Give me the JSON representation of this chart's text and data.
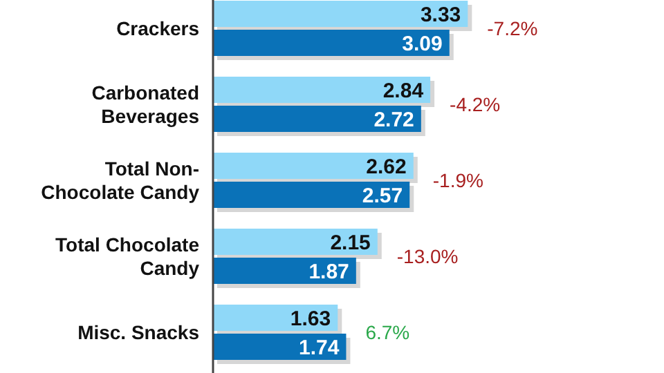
{
  "chart_data": {
    "type": "bar",
    "orientation": "horizontal",
    "data_labels": true,
    "categories": [
      "Crackers",
      "Carbonated Beverages",
      "Total Non-Chocolate Candy",
      "Total Chocolate Candy",
      "Misc. Snacks"
    ],
    "series": [
      {
        "color": "#8fd8f8",
        "values": [
          3.33,
          2.84,
          2.62,
          2.15,
          1.63
        ]
      },
      {
        "color": "#0a72b8",
        "values": [
          3.09,
          2.72,
          2.57,
          1.87,
          1.74
        ]
      }
    ],
    "annotations": [
      {
        "text": "-7.2%",
        "x": 3.33,
        "y": "Crackers"
      },
      {
        "text": "-4.2%",
        "x": 2.84,
        "y": "Carbonated Beverages"
      },
      {
        "text": "-1.9%",
        "x": 2.62,
        "y": "Total Non-Chocolate Candy"
      },
      {
        "text": "-13.0%",
        "x": 2.15,
        "y": "Total Chocolate Candy"
      },
      {
        "text": "6.7%",
        "x": 1.74,
        "y": "Misc. Snacks"
      }
    ]
  }
}
